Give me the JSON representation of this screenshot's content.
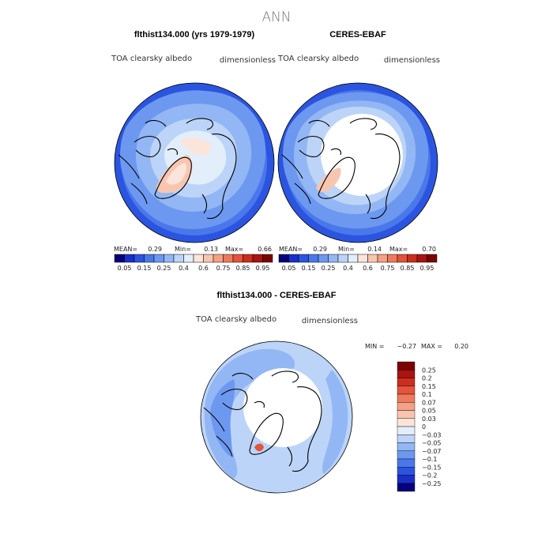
{
  "chart_data": {
    "type": "heatmap",
    "title": "ANN",
    "panels": [
      {
        "id": "model",
        "title": "flthist134.000 (yrs 1979-1979)",
        "variable": "TOA clearsky albedo",
        "units": "dimensionless",
        "mean_label": "MEAN=",
        "mean": "0.29",
        "min_label": "Min=",
        "min": "0.13",
        "max_label": "Max=",
        "max": "0.66"
      },
      {
        "id": "obs",
        "title": "CERES-EBAF",
        "variable": "TOA clearsky albedo",
        "units": "dimensionless",
        "mean_label": "MEAN=",
        "mean": "0.29",
        "min_label": "Min=",
        "min": "0.14",
        "max_label": "Max=",
        "max": "0.70"
      },
      {
        "id": "diff",
        "title": "flthist134.000 - CERES-EBAF",
        "variable": "TOA clearsky albedo",
        "units": "dimensionless",
        "min_label": "MIN =",
        "min": "−0.27",
        "max_label": "MAX =",
        "max": "0.20"
      }
    ],
    "colorbar_abs": {
      "colors": [
        "#08007a",
        "#1a2fc8",
        "#2b55e0",
        "#4a78ea",
        "#6d98f0",
        "#93b7f4",
        "#bcd4f7",
        "#e3eefb",
        "#fbe4da",
        "#f8c6b0",
        "#f4a184",
        "#ee7a5d",
        "#e3543a",
        "#cc2e1e",
        "#a81510",
        "#7a0404"
      ],
      "labels": [
        "0.05",
        "0.15",
        "0.25",
        "0.4",
        "0.6",
        "0.75",
        "0.85",
        "0.95"
      ]
    },
    "colorbar_diff": {
      "colors": [
        "#7a0404",
        "#a81510",
        "#cc2e1e",
        "#e3543a",
        "#ee7a5d",
        "#f4a184",
        "#f8c6b0",
        "#fbe4da",
        "#e3eefb",
        "#bcd4f7",
        "#93b7f4",
        "#6d98f0",
        "#4a78ea",
        "#2b55e0",
        "#1a2fc8",
        "#08007a"
      ],
      "labels": [
        "0.25",
        "0.2",
        "0.15",
        "0.1",
        "0.07",
        "0.05",
        "0.03",
        "0",
        "−0.03",
        "−0.05",
        "−0.07",
        "−0.1",
        "−0.15",
        "−0.2",
        "−0.25"
      ]
    }
  }
}
